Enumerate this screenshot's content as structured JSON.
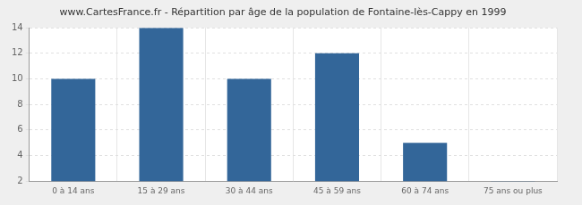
{
  "chart_data": {
    "type": "bar",
    "title": "www.CartesFrance.fr - Répartition par âge de la population de Fontaine-lès-Cappy en 1999",
    "categories": [
      "0 à 14 ans",
      "15 à 29 ans",
      "30 à 44 ans",
      "45 à 59 ans",
      "60 à 74 ans",
      "75 ans ou plus"
    ],
    "values": [
      10,
      14,
      10,
      12,
      5,
      2
    ],
    "color": "#336699",
    "ylim": [
      2,
      14
    ],
    "yticks": [
      2,
      4,
      6,
      8,
      10,
      12,
      14
    ],
    "grid": true
  }
}
